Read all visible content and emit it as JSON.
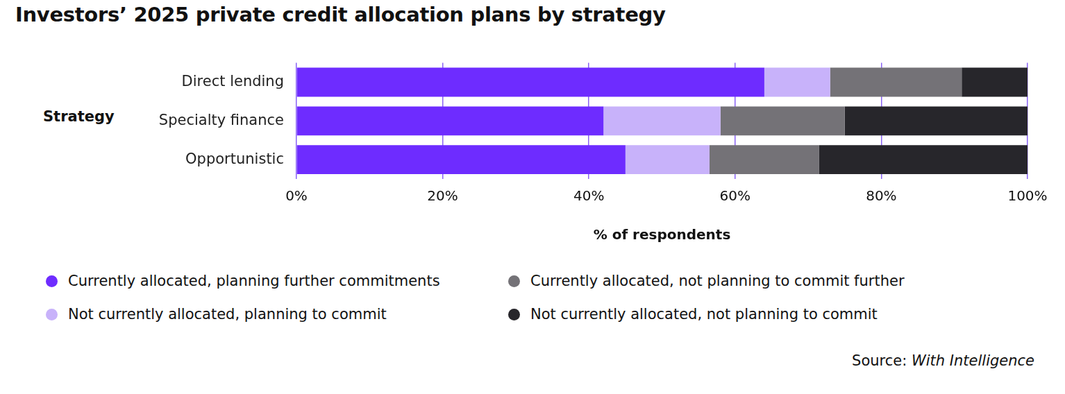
{
  "chart_data": {
    "type": "bar",
    "title": "Investors’ 2025 private credit allocation plans by strategy",
    "x_label": "% of respondents",
    "y_label": "Strategy",
    "source": {
      "label": "Source:",
      "name": "With Intelligence"
    },
    "orientation": "horizontal",
    "stacked": true,
    "grid": true,
    "legend": "bottom",
    "categories": [
      "Direct lending",
      "Specialty finance",
      "Opportunistic"
    ],
    "series": [
      {
        "name": "Currently allocated, planning further commitments",
        "color": "#6e2cff",
        "values": [
          64,
          42,
          45
        ]
      },
      {
        "name": "Not currently allocated, planning to commit",
        "color": "#c8b2fa",
        "values": [
          9,
          16,
          11.5
        ]
      },
      {
        "name": "Currently allocated, not planning to commit further",
        "color": "#747277",
        "values": [
          18,
          17,
          15
        ]
      },
      {
        "name": "Not currently allocated, not planning to commit",
        "color": "#27262b",
        "values": [
          9,
          25,
          28.5
        ]
      }
    ],
    "xlim": [
      0,
      100
    ],
    "xticks": [
      {
        "value": 0,
        "label": "0%"
      },
      {
        "value": 20,
        "label": "20%"
      },
      {
        "value": 40,
        "label": "40%"
      },
      {
        "value": 60,
        "label": "60%"
      },
      {
        "value": 80,
        "label": "80%"
      },
      {
        "value": 100,
        "label": "100%"
      }
    ]
  }
}
